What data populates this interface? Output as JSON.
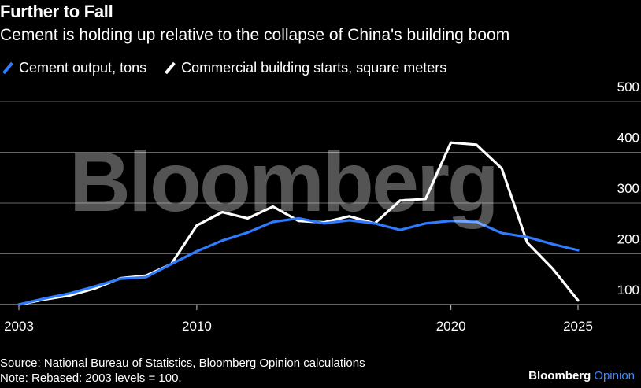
{
  "header": {
    "title": "Further to Fall",
    "subtitle": "Cement is holding up relative to the collapse of China's building boom"
  },
  "legend": [
    {
      "label": "Cement output, tons",
      "color": "#2f7bff"
    },
    {
      "label": "Commercial building starts, square meters",
      "color": "#ffffff"
    }
  ],
  "watermark": "Bloomberg",
  "footer": {
    "source": "Source: National Bureau of Statistics, Bloomberg Opinion calculations",
    "note": "Note: Rebased: 2003 levels = 100."
  },
  "brand": {
    "name": "Bloomberg",
    "suffix": "Opinion"
  },
  "colors": {
    "background": "#000000",
    "gridline": "#666666",
    "cement": "#2f7bff",
    "building": "#ffffff"
  },
  "chart_data": {
    "type": "line",
    "title": "Further to Fall",
    "subtitle": "Cement is holding up relative to the collapse of China's building boom",
    "xlim": [
      2003,
      2025
    ],
    "ylim": [
      100,
      500
    ],
    "xticks": [
      "2003",
      "2010",
      "2020",
      "2025"
    ],
    "yticks": [
      "500",
      "400",
      "300",
      "200",
      "100"
    ],
    "grid": true,
    "y_axis_side": "right",
    "legend_position": "top-left",
    "series": [
      {
        "name": "Cement output, tons",
        "color": "#2f7bff",
        "x": [
          2003,
          2004,
          2005,
          2006,
          2007,
          2008,
          2009,
          2010,
          2011,
          2012,
          2013,
          2014,
          2015,
          2016,
          2017,
          2018,
          2019,
          2020,
          2021,
          2022,
          2023,
          2024,
          2025
        ],
        "y": [
          100,
          112,
          122,
          136,
          151,
          154,
          180,
          205,
          226,
          242,
          263,
          270,
          260,
          266,
          260,
          247,
          260,
          265,
          263,
          241,
          233,
          219,
          207
        ]
      },
      {
        "name": "Commercial building starts, square meters",
        "color": "#ffffff",
        "x": [
          2003,
          2004,
          2005,
          2006,
          2007,
          2008,
          2009,
          2010,
          2011,
          2012,
          2013,
          2014,
          2015,
          2016,
          2017,
          2018,
          2019,
          2020,
          2021,
          2022,
          2023,
          2024,
          2025
        ],
        "y": [
          100,
          110,
          118,
          132,
          152,
          157,
          180,
          256,
          282,
          270,
          293,
          265,
          262,
          274,
          260,
          305,
          308,
          419,
          415,
          368,
          222,
          171,
          108
        ]
      }
    ]
  }
}
